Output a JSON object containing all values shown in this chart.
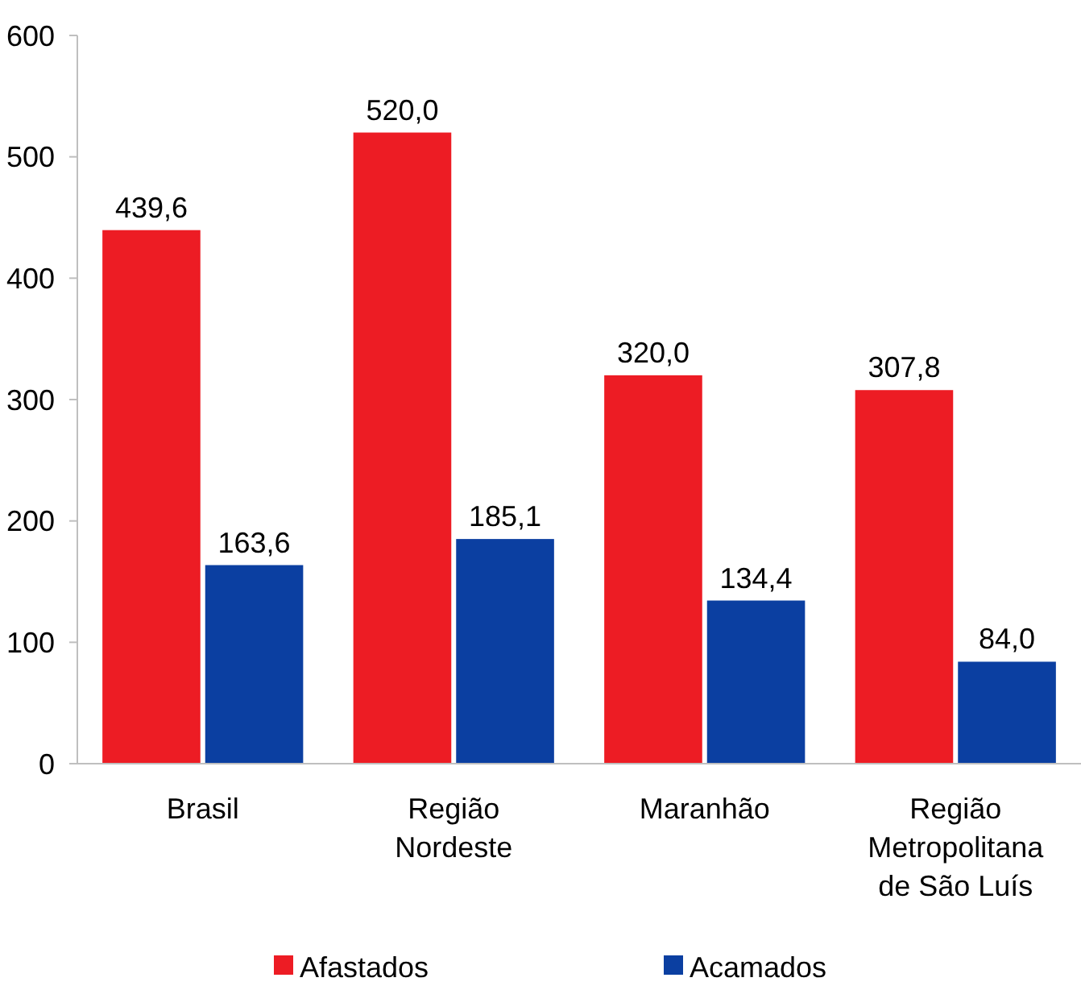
{
  "chart_data": {
    "type": "bar",
    "categories": [
      "Brasil",
      "Região Nordeste",
      "Maranhão",
      "Região Metropolitana de São Luís"
    ],
    "series": [
      {
        "name": "Afastados",
        "color": "#ed1c24",
        "values": [
          439.6,
          520.0,
          320.0,
          307.8
        ],
        "value_labels": [
          "439,6",
          "520,0",
          "320,0",
          "307,8"
        ]
      },
      {
        "name": "Acamados",
        "color": "#0b3fa1",
        "values": [
          163.6,
          185.1,
          134.4,
          84.0
        ],
        "value_labels": [
          "163,6",
          "185,1",
          "134,4",
          "84,0"
        ]
      }
    ],
    "ylim": [
      0,
      600
    ],
    "yticks": [
      0,
      100,
      200,
      300,
      400,
      500,
      600
    ],
    "grid": false,
    "legend": "bottom"
  }
}
